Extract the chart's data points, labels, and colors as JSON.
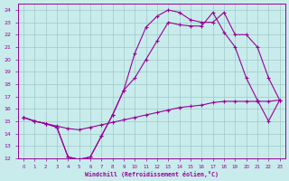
{
  "xlabel": "Windchill (Refroidissement éolien,°C)",
  "bg_color": "#c8ecec",
  "grid_color": "#a0c8c8",
  "line_color": "#990099",
  "xlim": [
    -0.5,
    23.5
  ],
  "ylim": [
    12,
    24.5
  ],
  "xticks": [
    0,
    1,
    2,
    3,
    4,
    5,
    6,
    7,
    8,
    9,
    10,
    11,
    12,
    13,
    14,
    15,
    16,
    17,
    18,
    19,
    20,
    21,
    22,
    23
  ],
  "yticks": [
    12,
    13,
    14,
    15,
    16,
    17,
    18,
    19,
    20,
    21,
    22,
    23,
    24
  ],
  "line1_x": [
    0,
    1,
    2,
    3,
    4,
    5,
    6,
    7,
    8,
    9,
    10,
    11,
    12,
    13,
    14,
    15,
    16,
    17,
    18,
    19,
    20,
    21,
    22,
    23
  ],
  "line1_y": [
    15.3,
    15.0,
    14.8,
    14.6,
    14.4,
    14.3,
    14.5,
    14.7,
    14.9,
    15.1,
    15.3,
    15.5,
    15.7,
    15.9,
    16.1,
    16.2,
    16.3,
    16.5,
    16.6,
    16.6,
    16.6,
    16.6,
    16.6,
    16.7
  ],
  "line2_x": [
    0,
    1,
    2,
    3,
    4,
    5,
    6,
    7,
    8,
    9,
    10,
    11,
    12,
    13,
    14,
    15,
    16,
    17,
    18,
    19,
    20,
    21,
    22,
    23
  ],
  "line2_y": [
    15.3,
    15.0,
    14.8,
    14.5,
    12.1,
    11.9,
    12.1,
    13.8,
    15.5,
    17.5,
    20.5,
    22.6,
    23.5,
    24.0,
    23.8,
    23.2,
    23.0,
    23.0,
    23.8,
    22.0,
    22.0,
    21.0,
    18.5,
    16.7
  ],
  "line3_x": [
    0,
    1,
    2,
    3,
    4,
    5,
    6,
    7,
    8,
    9,
    10,
    11,
    12,
    13,
    14,
    15,
    16,
    17,
    18,
    19,
    20,
    21,
    22,
    23
  ],
  "line3_y": [
    15.3,
    15.0,
    14.8,
    14.5,
    12.1,
    11.9,
    12.1,
    13.8,
    15.5,
    17.5,
    18.5,
    20.0,
    21.5,
    23.0,
    22.8,
    22.7,
    22.7,
    23.8,
    22.2,
    21.0,
    18.5,
    16.7,
    15.0,
    16.7
  ]
}
